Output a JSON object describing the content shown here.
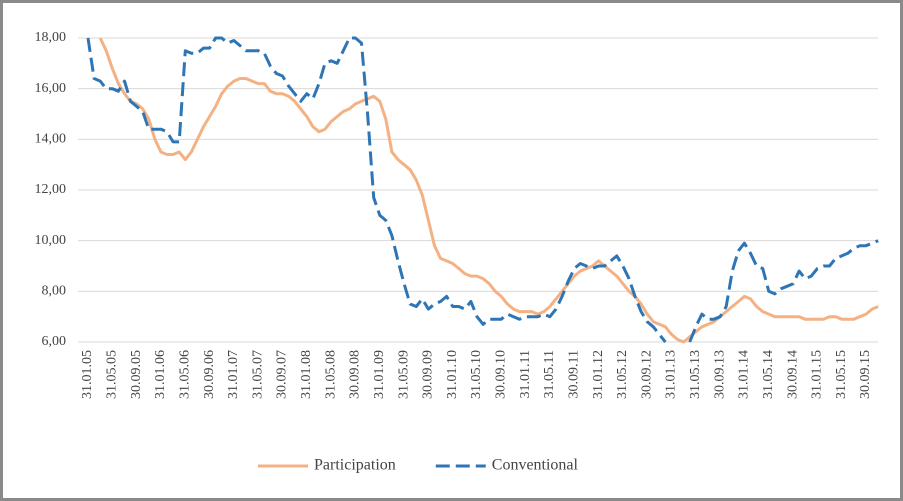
{
  "chart_data": {
    "type": "line",
    "categories": [
      "31.01.05",
      null,
      null,
      null,
      "31.05.05",
      null,
      null,
      null,
      "30.09.05",
      null,
      null,
      null,
      "31.01.06",
      null,
      null,
      null,
      "31.05.06",
      null,
      null,
      null,
      "30.09.06",
      null,
      null,
      null,
      "31.01.07",
      null,
      null,
      null,
      "31.05.07",
      null,
      null,
      null,
      "30.09.07",
      null,
      null,
      null,
      "31.01.08",
      null,
      null,
      null,
      "31.05.08",
      null,
      null,
      null,
      "30.09.08",
      null,
      null,
      null,
      "31.01.09",
      null,
      null,
      null,
      "31.05.09",
      null,
      null,
      null,
      "30.09.09",
      null,
      null,
      null,
      "31.01.10",
      null,
      null,
      null,
      "31.05.10",
      null,
      null,
      null,
      "30.09.10",
      null,
      null,
      null,
      "31.01.11",
      null,
      null,
      null,
      "31.05.11",
      null,
      null,
      null,
      "30.09.11",
      null,
      null,
      null,
      "31.01.12",
      null,
      null,
      null,
      "31.05.12",
      null,
      null,
      null,
      "30.09.12",
      null,
      null,
      null,
      "31.01.13",
      null,
      null,
      null,
      "31.05.13",
      null,
      null,
      null,
      "30.09.13",
      null,
      null,
      null,
      "31.01.14",
      null,
      null,
      null,
      "31.05.14",
      null,
      null,
      null,
      "30.09.14",
      null,
      null,
      null,
      "31.01.15",
      null,
      null,
      null,
      "31.05.15",
      null,
      null,
      null,
      "30.09.15",
      null,
      null
    ],
    "series": [
      {
        "name": "Participation",
        "color": "#f4b183",
        "dash": false,
        "values": [
          null,
          null,
          18.0,
          17.5,
          16.8,
          16.2,
          15.8,
          15.5,
          15.4,
          15.2,
          14.8,
          14.0,
          13.5,
          13.4,
          13.4,
          13.5,
          13.2,
          13.5,
          14.0,
          14.5,
          14.9,
          15.3,
          15.8,
          16.1,
          16.3,
          16.4,
          16.4,
          16.3,
          16.2,
          16.2,
          15.9,
          15.8,
          15.8,
          15.7,
          15.5,
          15.2,
          14.9,
          14.5,
          14.3,
          14.4,
          14.7,
          14.9,
          15.1,
          15.2,
          15.4,
          15.5,
          15.6,
          15.7,
          15.5,
          14.8,
          13.5,
          13.2,
          13.0,
          12.8,
          12.4,
          11.8,
          10.8,
          9.8,
          9.3,
          9.2,
          9.1,
          8.9,
          8.7,
          8.6,
          8.6,
          8.5,
          8.3,
          8.0,
          7.8,
          7.5,
          7.3,
          7.2,
          7.2,
          7.2,
          7.1,
          7.2,
          7.4,
          7.7,
          8.0,
          8.3,
          8.6,
          8.8,
          8.9,
          9.0,
          9.2,
          9.0,
          8.8,
          8.6,
          8.3,
          8.0,
          7.8,
          7.5,
          7.1,
          6.8,
          6.7,
          6.6,
          6.3,
          6.1,
          6.0,
          6.2,
          6.4,
          6.6,
          6.7,
          6.8,
          7.0,
          7.2,
          7.4,
          7.6,
          7.8,
          7.7,
          7.4,
          7.2,
          7.1,
          7.0,
          7.0,
          7.0,
          7.0,
          7.0,
          6.9,
          6.9,
          6.9,
          6.9,
          7.0,
          7.0,
          6.9,
          6.9,
          6.9,
          7.0,
          7.1,
          7.3,
          7.4
        ]
      },
      {
        "name": "Conventional",
        "color": "#2e75b6",
        "dash": true,
        "values": [
          18.0,
          16.4,
          16.3,
          16.0,
          16.0,
          15.9,
          16.3,
          15.5,
          15.3,
          15.1,
          14.4,
          14.4,
          14.4,
          14.3,
          13.9,
          13.9,
          17.5,
          17.4,
          17.4,
          17.6,
          17.6,
          18.0,
          18.0,
          17.8,
          17.9,
          17.7,
          17.5,
          17.5,
          17.5,
          17.4,
          16.9,
          16.6,
          16.5,
          16.1,
          15.8,
          15.5,
          15.8,
          15.6,
          16.2,
          17.0,
          17.1,
          17.0,
          17.5,
          18.0,
          18.0,
          17.8,
          15.0,
          11.7,
          11.0,
          10.8,
          10.2,
          9.2,
          8.3,
          7.5,
          7.4,
          7.7,
          7.3,
          7.5,
          7.6,
          7.8,
          7.4,
          7.4,
          7.3,
          7.6,
          7.0,
          6.7,
          6.9,
          6.9,
          6.9,
          7.1,
          7.0,
          6.9,
          7.0,
          7.0,
          7.0,
          7.1,
          7.0,
          7.3,
          7.8,
          8.4,
          8.9,
          9.1,
          9.0,
          8.9,
          9.0,
          9.0,
          9.2,
          9.4,
          9.0,
          8.5,
          7.8,
          7.2,
          6.8,
          6.6,
          6.3,
          6.0,
          null,
          null,
          null,
          6.0,
          6.6,
          7.1,
          6.9,
          6.9,
          7.0,
          7.4,
          8.8,
          9.6,
          9.9,
          9.5,
          9.0,
          8.9,
          8.0,
          7.9,
          8.1,
          8.2,
          8.3,
          8.8,
          8.5,
          8.6,
          8.9,
          9.0,
          9.0,
          9.3,
          9.4,
          9.5,
          9.7,
          9.8,
          9.8,
          9.9,
          10.0
        ]
      }
    ],
    "ylim": [
      6,
      18
    ],
    "yticks": [
      {
        "value": 6,
        "label": "6,00"
      },
      {
        "value": 8,
        "label": "8,00"
      },
      {
        "value": 10,
        "label": "10,00"
      },
      {
        "value": 12,
        "label": "12,00"
      },
      {
        "value": 14,
        "label": "14,00"
      },
      {
        "value": 16,
        "label": "16,00"
      },
      {
        "value": 18,
        "label": "18,00"
      }
    ],
    "grid": true,
    "legend": "bottom"
  }
}
